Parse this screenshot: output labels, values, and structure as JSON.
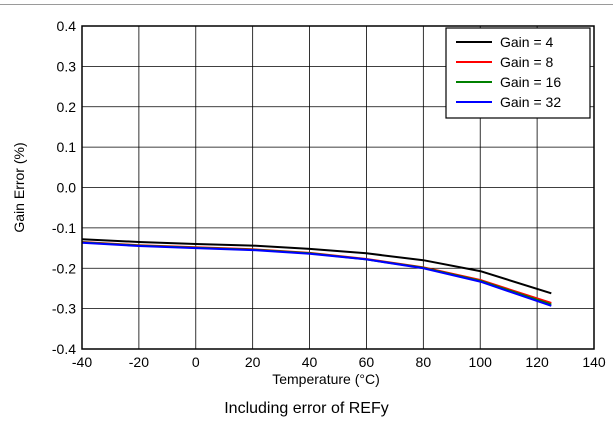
{
  "caption": "Including error of REFy",
  "chart_data": {
    "type": "line",
    "title": "",
    "xlabel": "Temperature (°C)",
    "ylabel": "Gain Error (%)",
    "xlim": [
      -40,
      140
    ],
    "ylim": [
      -0.4,
      0.4
    ],
    "xticks": [
      -40,
      -20,
      0,
      20,
      40,
      60,
      80,
      100,
      120,
      140
    ],
    "yticks": [
      -0.4,
      -0.3,
      -0.2,
      -0.1,
      0.0,
      0.1,
      0.2,
      0.3,
      0.4
    ],
    "xtick_labels": [
      "-40",
      "-20",
      "0",
      "20",
      "40",
      "60",
      "80",
      "100",
      "120",
      "140"
    ],
    "ytick_labels": [
      "-0.4",
      "-0.3",
      "-0.2",
      "-0.1",
      "0.0",
      "0.1",
      "0.2",
      "0.3",
      "0.4"
    ],
    "grid": true,
    "legend": "top-right",
    "x": [
      -40,
      -20,
      0,
      20,
      40,
      60,
      80,
      100,
      125
    ],
    "series": [
      {
        "name": "Gain = 4",
        "color": "#000000",
        "values": [
          -0.128,
          -0.135,
          -0.14,
          -0.144,
          -0.152,
          -0.163,
          -0.18,
          -0.207,
          -0.262
        ]
      },
      {
        "name": "Gain = 8",
        "color": "#ff0000",
        "values": [
          -0.135,
          -0.143,
          -0.148,
          -0.153,
          -0.162,
          -0.177,
          -0.198,
          -0.229,
          -0.286
        ]
      },
      {
        "name": "Gain = 16",
        "color": "#008000",
        "values": [
          -0.136,
          -0.144,
          -0.149,
          -0.154,
          -0.163,
          -0.178,
          -0.199,
          -0.231,
          -0.29
        ]
      },
      {
        "name": "Gain = 32",
        "color": "#0000ff",
        "values": [
          -0.137,
          -0.145,
          -0.15,
          -0.155,
          -0.164,
          -0.178,
          -0.2,
          -0.233,
          -0.293
        ]
      }
    ]
  }
}
